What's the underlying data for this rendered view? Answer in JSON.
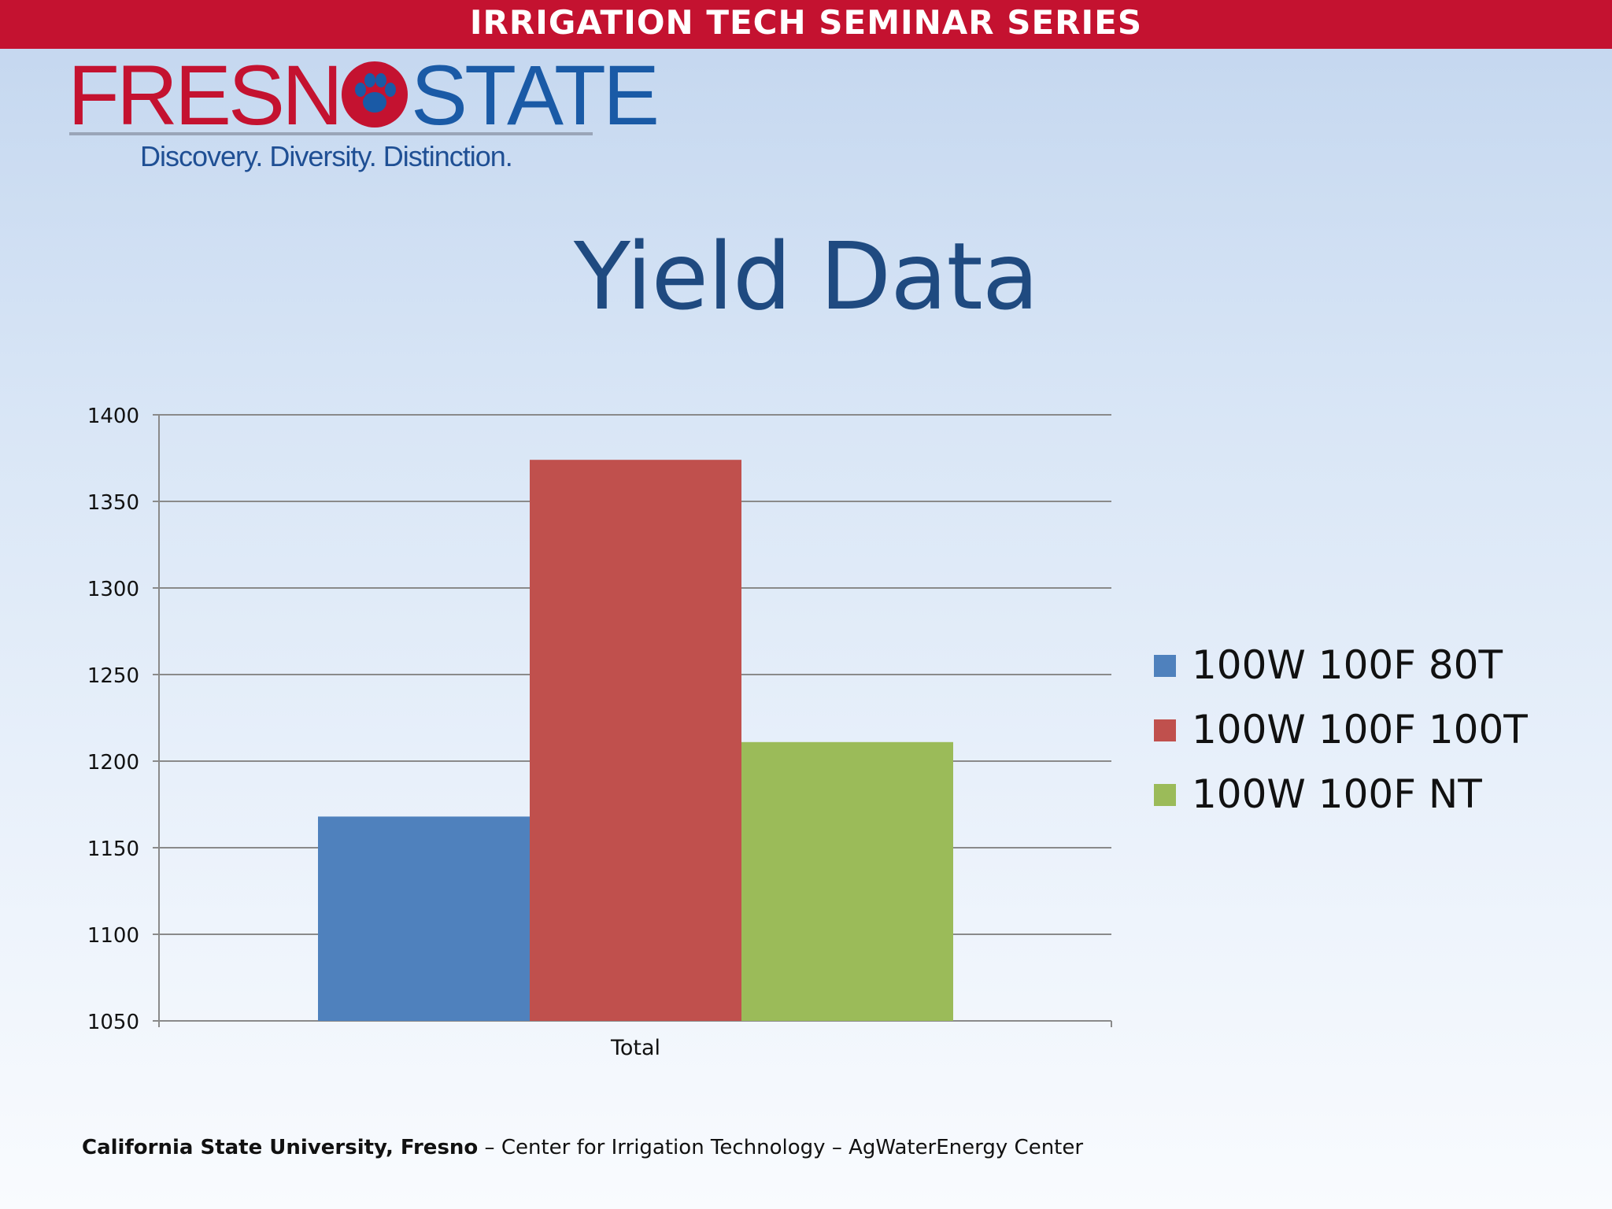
{
  "banner": {
    "text": "IRRIGATION TECH SEMINAR SERIES"
  },
  "logo": {
    "word_left": "FRESN",
    "word_right": "STATE",
    "tagline": "Discovery. Diversity. Distinction.",
    "brand_red": "#c41230",
    "brand_blue": "#1a5aa6",
    "icon": "paw-icon"
  },
  "slide": {
    "title": "Yield Data"
  },
  "chart_data": {
    "type": "bar",
    "title": "",
    "xlabel": "",
    "ylabel": "",
    "categories": [
      "Total"
    ],
    "ylim": [
      1050,
      1400
    ],
    "yticks": [
      1050,
      1100,
      1150,
      1200,
      1250,
      1300,
      1350,
      1400
    ],
    "grid": true,
    "legend_position": "right",
    "series": [
      {
        "name": "100W 100F 80T",
        "values": [
          1168
        ],
        "color": "#4f81bd"
      },
      {
        "name": "100W 100F 100T",
        "values": [
          1374
        ],
        "color": "#c0504d"
      },
      {
        "name": "100W 100F NT",
        "values": [
          1211
        ],
        "color": "#9bbb59"
      }
    ]
  },
  "footer": {
    "bold": "California State University, Fresno",
    "rest": " – Center for Irrigation Technology – AgWaterEnergy Center"
  }
}
